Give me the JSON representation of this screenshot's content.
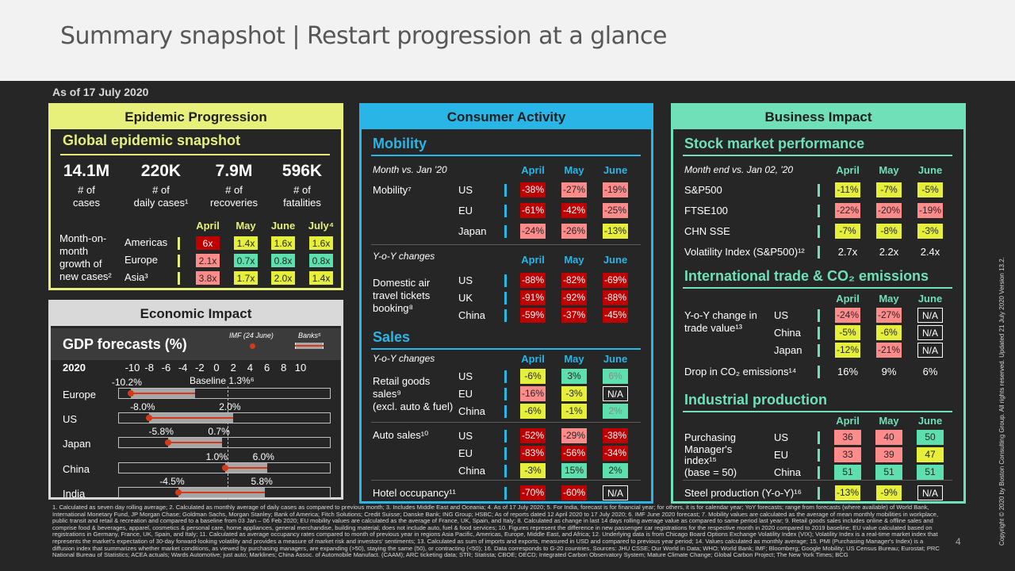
{
  "title": "Summary snapshot | Restart progression at a glance",
  "as_of": "As of 17 July 2020",
  "page_number": "4",
  "copyright": "Copyright © 2020 by Boston Consulting Group. All rights reserved. Updated 21 July 2020 Version 13.2.",
  "epidemic": {
    "header": "Epidemic Progression",
    "subtitle": "Global epidemic snapshot",
    "stats": [
      {
        "value": "14.1M",
        "l1": "# of",
        "l2": "cases"
      },
      {
        "value": "220K",
        "l1": "# of",
        "l2": "daily cases¹"
      },
      {
        "value": "7.9M",
        "l1": "# of",
        "l2": "recoveries"
      },
      {
        "value": "596K",
        "l1": "# of",
        "l2": "fatalities"
      }
    ],
    "cols": [
      "April",
      "May",
      "June",
      "July⁴"
    ],
    "row_label": "Month-on-month growth of new cases²",
    "row_label_lines": [
      "Month-on-",
      "month",
      "growth of",
      "new cases²"
    ],
    "rows": [
      {
        "name": "Americas",
        "vals": [
          "6x",
          "1.4x",
          "1.6x",
          "1.6x"
        ]
      },
      {
        "name": "Europe",
        "vals": [
          "2.1x",
          "0.7x",
          "0.8x",
          "0.8x"
        ]
      },
      {
        "name": "Asia³",
        "vals": [
          "3.8x",
          "1.7x",
          "2.0x",
          "1.4x"
        ]
      }
    ]
  },
  "economic": {
    "header": "Economic Impact",
    "subtitle": "GDP forecasts (%)",
    "legend_imf": "IMF (24 June)",
    "legend_banks": "Banks⁵",
    "year": "2020",
    "ticks": [
      "-10",
      "-8",
      "-6",
      "-4",
      "-2",
      "0",
      "2",
      "4",
      "6",
      "8",
      "10"
    ],
    "baseline": "Baseline 1.3%⁶",
    "countries": [
      {
        "name": "Europe",
        "low": "-10.2%",
        "high": ""
      },
      {
        "name": "US",
        "low": "-8.0%",
        "high": "2.0%"
      },
      {
        "name": "Japan",
        "low": "-5.8%",
        "high": "0.7%"
      },
      {
        "name": "China",
        "low": "1.0%",
        "high": "6.0%"
      },
      {
        "name": "India",
        "low": "-4.5%",
        "high": "5.8%"
      }
    ]
  },
  "consumer": {
    "header": "Consumer Activity",
    "mobility": {
      "title": "Mobility",
      "caption": "Month vs. Jan '20",
      "cols": [
        "April",
        "May",
        "June"
      ],
      "label": "Mobility⁷",
      "rows": [
        {
          "name": "US",
          "vals": [
            "-38%",
            "-27%",
            "-19%"
          ]
        },
        {
          "name": "EU",
          "vals": [
            "-61%",
            "-42%",
            "-25%"
          ]
        },
        {
          "name": "Japan",
          "vals": [
            "-24%",
            "-26%",
            "-13%"
          ]
        }
      ]
    },
    "air": {
      "caption": "Y-o-Y changes",
      "cols": [
        "April",
        "May",
        "June"
      ],
      "label": [
        "Domestic air",
        "travel tickets",
        "booking⁸"
      ],
      "rows": [
        {
          "name": "US",
          "vals": [
            "-88%",
            "-82%",
            "-69%"
          ]
        },
        {
          "name": "UK",
          "vals": [
            "-91%",
            "-92%",
            "-88%"
          ]
        },
        {
          "name": "China",
          "vals": [
            "-59%",
            "-37%",
            "-45%"
          ]
        }
      ]
    },
    "sales": {
      "title": "Sales",
      "caption": "Y-o-Y changes",
      "cols": [
        "April",
        "May",
        "June"
      ],
      "label": [
        "Retail goods",
        "sales⁹",
        "(excl. auto & fuel)"
      ],
      "rows": [
        {
          "name": "US",
          "vals": [
            "-6%",
            "3%",
            "6%"
          ]
        },
        {
          "name": "EU",
          "vals": [
            "-16%",
            "-3%",
            "N/A"
          ]
        },
        {
          "name": "China",
          "vals": [
            "-6%",
            "-1%",
            "2%"
          ]
        }
      ]
    },
    "auto": {
      "label": "Auto sales¹⁰",
      "rows": [
        {
          "name": "US",
          "vals": [
            "-52%",
            "-29%",
            "-38%"
          ]
        },
        {
          "name": "EU",
          "vals": [
            "-83%",
            "-56%",
            "-34%"
          ]
        },
        {
          "name": "China",
          "vals": [
            "-3%",
            "15%",
            "2%"
          ]
        }
      ]
    },
    "hotel": {
      "label": "Hotel occupancy¹¹",
      "vals": [
        "-70%",
        "-60%",
        "N/A"
      ]
    }
  },
  "business": {
    "header": "Business Impact",
    "stock": {
      "title": "Stock market performance",
      "caption": "Month end vs. Jan 02, '20",
      "cols": [
        "April",
        "May",
        "June"
      ],
      "rows": [
        {
          "name": "S&P500",
          "vals": [
            "-11%",
            "-7%",
            "-5%"
          ]
        },
        {
          "name": "FTSE100",
          "vals": [
            "-22%",
            "-20%",
            "-19%"
          ]
        },
        {
          "name": "CHN SSE",
          "vals": [
            "-7%",
            "-8%",
            "-3%"
          ]
        },
        {
          "name": "Volatility Index (S&P500)¹²",
          "vals": [
            "2.7x",
            "2.2x",
            "2.4x"
          ]
        }
      ]
    },
    "trade": {
      "title": "International trade & CO₂ emissions",
      "cols": [
        "April",
        "May",
        "June"
      ],
      "label": [
        "Y-o-Y change in",
        "trade value¹³"
      ],
      "rows": [
        {
          "name": "US",
          "vals": [
            "-24%",
            "-27%",
            "N/A"
          ]
        },
        {
          "name": "China",
          "vals": [
            "-5%",
            "-6%",
            "N/A"
          ]
        },
        {
          "name": "Japan",
          "vals": [
            "-12%",
            "-21%",
            "N/A"
          ]
        }
      ],
      "co2_label": "Drop in CO₂ emissions¹⁴",
      "co2_vals": [
        "16%",
        "9%",
        "6%"
      ]
    },
    "industrial": {
      "title": "Industrial production",
      "cols": [
        "April",
        "May",
        "June"
      ],
      "label": [
        "Purchasing",
        "Manager's",
        "index¹⁵",
        "(base = 50)"
      ],
      "rows": [
        {
          "name": "US",
          "vals": [
            "36",
            "40",
            "50"
          ]
        },
        {
          "name": "EU",
          "vals": [
            "33",
            "39",
            "47"
          ]
        },
        {
          "name": "China",
          "vals": [
            "51",
            "51",
            "51"
          ]
        }
      ],
      "steel_label": "Steel production (Y-o-Y)¹⁶",
      "steel_vals": [
        "-13%",
        "-9%",
        "N/A"
      ]
    }
  },
  "footnote": "1. Calculated as seven day rolling average;  2. Calculated as monthly average of daily cases as compared to previous month;  3. Includes Middle East and Oceania;  4. As of 17 July 2020;  5. For India, forecast is for financial year; for others, it is for calendar year; YoY forecasts; range from forecasts (where available) of World Bank, International Monetary Fund, JP Morgan Chase; Goldman Sachs, Morgan Stanley; Bank of America; Fitch Solutions; Credit Suisse; Danske Bank; ING Group; HSBC; As of reports dated 12 April 2020 to 17 July 2020;  6. IMF June 2020 forecast;  7. Mobility values are calculated as the average of mean monthly mobilities in workplace, public transit and retail & recreation and compared to a baseline from 03 Jan – 06 Feb 2020; EU mobility values are calculated as the average of France, UK, Spain, and Italy; 8. Calculated as change in last 14 days rolling average value as compared to same period last year; 9. Retail goods sales includes online & offline sales and comprise food & beverages, apparel, cosmetics & personal care, home appliances, general merchandise, building material; does not include auto, fuel & food services;  10. Figures represent the difference in new passenger car registrations for the respective month in 2020 compared to 2019 baseline; EU value calculated based on registrations in Germany, France, UK, Spain, and Italy; 11. Calculated as average occupancy rates compared to month of previous year in regions Asia Pacific, Americas, Europe, Middle East, and Africa;  12. Underlying data is from Chicago Board Options Exchange Volatility Index (VIX); Volatility Index is a real-time market index that represents the market's expectation of 30-day forward-looking volatility and provides a measure of market risk and investors' sentiments;  13. Calculated as sum of imports and exports, measured in USD and compared to previous year period;  14. Values calculated as monthly average;  15. PMI (Purchasing Manager's Index) is a diffusion index that summarizes whether market conditions, as viewed by purchasing managers, are expanding (>50), staying the same (50), or contracting (<50);  16. Data corresponds to G-20 countries.  Sources: JHU CSSE; Our World in Data; WHO; World Bank; IMF; Bloomberg; Google Mobility; US Census Bureau; Eurostat; PRC National Bureau of Statistics; ACEA actuals; Wards Automotive; just auto; Marklines; China Assoc. of Automobile Manufact. (CAAM);  ARC ticketing data; STR; Statista; CBOE; OECD; Integrated Carbon Observatory System; Mature Climate Change; Global Carbon Project; The New York Times; BCG"
}
